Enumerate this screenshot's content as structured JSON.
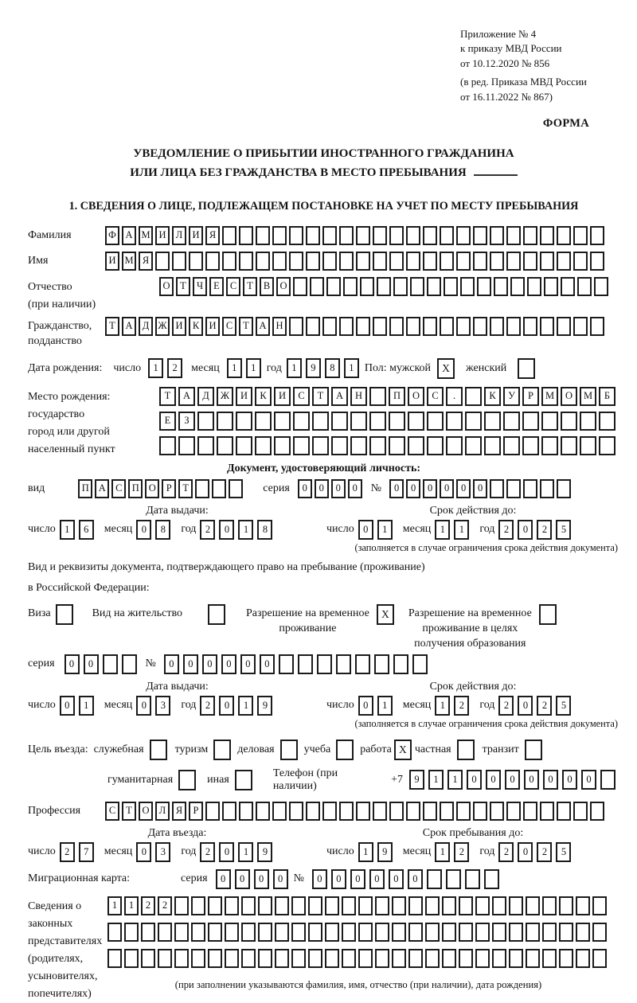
{
  "meta": {
    "appendix_lines": [
      "Приложение № 4",
      "к приказу МВД России",
      "от 10.12.2020 № 856"
    ],
    "revision_lines": [
      "(в ред. Приказа МВД России",
      "от 16.11.2022 № 867)"
    ],
    "form_label": "ФОРМА"
  },
  "title": {
    "line1": "УВЕДОМЛЕНИЕ О ПРИБЫТИИ ИНОСТРАННОГО ГРАЖДАНИНА",
    "line2": "ИЛИ ЛИЦА БЕЗ ГРАЖДАНСТВА В МЕСТО ПРЕБЫВАНИЯ"
  },
  "section1_heading": "1. СВЕДЕНИЯ О ЛИЦЕ, ПОДЛЕЖАЩЕМ ПОСТАНОВКЕ НА УЧЕТ ПО МЕСТУ ПРЕБЫВАНИЯ",
  "date_labels": {
    "day": "число",
    "month": "месяц",
    "year": "год"
  },
  "surname": {
    "label": "Фамилия",
    "cells": {
      "value": "ФАМИЛИЯ",
      "total": 30
    }
  },
  "firstname": {
    "label": "Имя",
    "cells": {
      "value": "ИМЯ",
      "total": 30
    }
  },
  "patronymic": {
    "label": "Отчество",
    "sublabel": "(при наличии)",
    "cells": {
      "value": "ОТЧЕСТВО",
      "total": 27
    }
  },
  "citizenship": {
    "label": "Гражданство,",
    "sublabel": "подданство",
    "cells": {
      "value": "ТАДЖИКИСТАН",
      "total": 30
    }
  },
  "birth_date": {
    "label": "Дата рождения:",
    "day": "12",
    "month": "11",
    "year": "1981"
  },
  "gender": {
    "label": "Пол: мужской",
    "male_mark": "X",
    "female_label": "женский",
    "female_mark": ""
  },
  "birth_place": {
    "label_lines": [
      "Место рождения:",
      "государство",
      "город или другой",
      "населенный пункт"
    ],
    "row1": {
      "value": "ТАДЖИКИСТАН ПОС. КУРМОМБ",
      "total": 24
    },
    "row2": {
      "value": "ЕЗ",
      "total": 24
    },
    "row3": {
      "value": "",
      "total": 24
    }
  },
  "identity_doc": {
    "heading": "Документ, удостоверяющий личность:",
    "kind_label": "вид",
    "kind": {
      "value": "ПАСПОРТ",
      "total": 10
    },
    "series_label": "серия",
    "series": {
      "value": "0000",
      "total": 4
    },
    "number_label": "№",
    "number": {
      "value": "000000",
      "total": 11
    },
    "issue_heading": "Дата выдачи:",
    "issue": {
      "day": "16",
      "month": "08",
      "year": "2018"
    },
    "expiry_heading": "Срок действия до:",
    "expiry": {
      "day": "01",
      "month": "11",
      "year": "2025"
    },
    "note": "(заполняется в случае ограничения срока действия документа)"
  },
  "residence_doc": {
    "intro_line1": "Вид и реквизиты документа, подтверждающего право на пребывание (проживание)",
    "intro_line2": "в Российской Федерации:",
    "visa_label": "Виза",
    "visa_mark": "",
    "residence_permit_label": "Вид на жительство",
    "residence_permit_mark": "",
    "rvp_label_line1": "Разрешение на временное",
    "rvp_label_line2": "проживание",
    "rvp_mark": "X",
    "rvp_edu_label_line1": "Разрешение на временное",
    "rvp_edu_label_line2": "проживание в целях",
    "rvp_edu_label_line3": "получения образования",
    "rvp_edu_mark": "",
    "series_label": "серия",
    "series": {
      "value": "00",
      "total": 4
    },
    "number_label": "№",
    "number": {
      "value": "000000",
      "total": 14
    },
    "issue_heading": "Дата выдачи:",
    "issue": {
      "day": "01",
      "month": "03",
      "year": "2019"
    },
    "expiry_heading": "Срок действия до:",
    "expiry": {
      "day": "01",
      "month": "12",
      "year": "2025"
    },
    "note": "(заполняется в случае ограничения срока действия документа)"
  },
  "visit_purpose": {
    "label": "Цель въезда:",
    "options": [
      {
        "label": "служебная",
        "mark": ""
      },
      {
        "label": "туризм",
        "mark": ""
      },
      {
        "label": "деловая",
        "mark": ""
      },
      {
        "label": "учеба",
        "mark": ""
      },
      {
        "label": "работа",
        "mark": "X"
      },
      {
        "label": "частная",
        "mark": ""
      },
      {
        "label": "транзит",
        "mark": ""
      },
      {
        "label": "гуманитарная",
        "mark": ""
      },
      {
        "label": "иная",
        "mark": ""
      }
    ],
    "phone_label": "Телефон (при наличии)",
    "phone_prefix": "+7",
    "phone": {
      "value": "9110000000",
      "total": 11
    }
  },
  "profession": {
    "label": "Профессия",
    "cells": {
      "value": "СТОЛЯР",
      "total": 30
    }
  },
  "entry": {
    "date_heading": "Дата въезда:",
    "date": {
      "day": "27",
      "month": "03",
      "year": "2019"
    },
    "stay_heading": "Срок пребывания до:",
    "stay": {
      "day": "19",
      "month": "12",
      "year": "2025"
    }
  },
  "migration_card": {
    "label": "Миграционная карта:",
    "series_label": "серия",
    "series": {
      "value": "0000",
      "total": 4
    },
    "number_label": "№",
    "number": {
      "value": "000000",
      "total": 10
    }
  },
  "legal_reps": {
    "label_lines": [
      "Сведения о",
      "законных",
      "представителях",
      "(родителях,",
      "усыновителях,",
      "попечителях)"
    ],
    "row1": {
      "value": "1122",
      "total": 30
    },
    "row2": {
      "value": "",
      "total": 30
    },
    "row3": {
      "value": "",
      "total": 30
    },
    "note": "(при заполнении указываются фамилия, имя, отчество (при наличии), дата рождения)"
  }
}
